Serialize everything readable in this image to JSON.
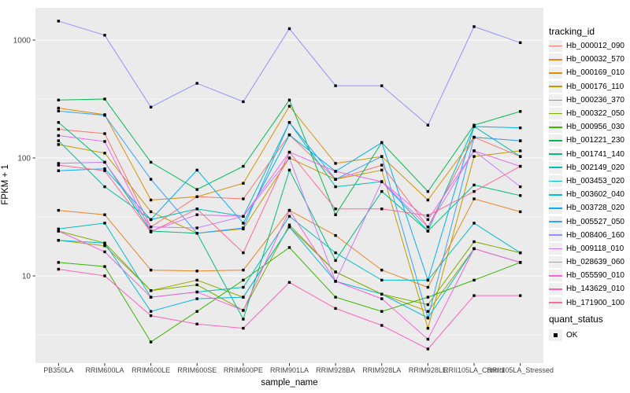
{
  "chart_data": {
    "type": "line",
    "title": "",
    "xlabel": "sample_name",
    "ylabel": "FPKM + 1",
    "y_scale": "log10",
    "ylim": [
      1.8,
      1875
    ],
    "grid": "white-on-gray",
    "panel_bg": "#EBEBEB",
    "gridline_color": "#FFFFFF",
    "tick_label_color": "#444444",
    "point_shape": "filled-square",
    "point_color": "#000000",
    "legend_position": "right",
    "y_ticks": [
      {
        "value": 10,
        "label": "10"
      },
      {
        "value": 100,
        "label": "100"
      },
      {
        "value": 1000,
        "label": "1000"
      }
    ],
    "y_minor_ticks": [
      3.162,
      31.62,
      316.2
    ],
    "categories": [
      "PB350LA",
      "RRIM600LA",
      "RRIM600LE",
      "RRIM600SE",
      "RRIM600PE",
      "RRIM901LA",
      "RRIM928BA",
      "RRIM928LA",
      "RRIM928LE",
      "RRII105LA_Control",
      "RRII105LA_Stressed"
    ],
    "series": [
      {
        "name": "Hb_000012_090",
        "color": "#F8766D",
        "values": [
          175,
          161,
          26,
          47,
          45,
          157,
          66,
          87,
          26,
          150,
          103
        ]
      },
      {
        "name": "Hb_000032_570",
        "color": "#E88526",
        "values": [
          36,
          33,
          11.2,
          11,
          11.2,
          36,
          22,
          11.2,
          8,
          45,
          35
        ]
      },
      {
        "name": "Hb_000169_010",
        "color": "#D89000",
        "values": [
          265,
          233,
          44,
          47,
          61,
          275,
          90,
          103,
          44,
          150,
          140
        ]
      },
      {
        "name": "Hb_000176_110",
        "color": "#C09B00",
        "values": [
          130,
          110,
          35,
          23,
          25,
          100,
          66,
          79,
          3.6,
          103,
          115
        ]
      },
      {
        "name": "Hb_000236_370",
        "color": "#A3A500",
        "values": [
          20,
          18,
          7.5,
          9.2,
          6.6,
          26,
          10.8,
          7,
          5,
          17,
          13
        ]
      },
      {
        "name": "Hb_000322_050",
        "color": "#7CAE00",
        "values": [
          24,
          19,
          7.5,
          8.4,
          5.1,
          27,
          10.8,
          7,
          5.7,
          19.5,
          15.7
        ]
      },
      {
        "name": "Hb_000956_030",
        "color": "#39B600",
        "values": [
          13,
          12,
          2.75,
          5,
          9.2,
          17.4,
          6.6,
          5,
          6.6,
          9.2,
          13
        ]
      },
      {
        "name": "Hb_001221_230",
        "color": "#00BB4E",
        "values": [
          310,
          316,
          92,
          54,
          85,
          310,
          33,
          135,
          52,
          190,
          248
        ]
      },
      {
        "name": "Hb_001741_140",
        "color": "#00BF7D",
        "values": [
          200,
          92,
          24,
          23,
          4.3,
          79,
          13.5,
          52,
          24,
          59,
          48
        ]
      },
      {
        "name": "Hb_002149_020",
        "color": "#00C0AF",
        "values": [
          140,
          57,
          30,
          37,
          32,
          200,
          57,
          63,
          24,
          185,
          103
        ]
      },
      {
        "name": "Hb_003453_020",
        "color": "#00BFC4",
        "values": [
          25,
          28,
          6.6,
          7.3,
          8,
          32,
          15.7,
          9.2,
          9.2,
          28,
          15.7
        ]
      },
      {
        "name": "Hb_003602_040",
        "color": "#00BAE0",
        "values": [
          20,
          19,
          5,
          6.4,
          6.6,
          26,
          9,
          7,
          4.4,
          17,
          13
        ]
      },
      {
        "name": "Hb_003728_020",
        "color": "#00B0F6",
        "values": [
          78,
          81,
          30,
          79,
          28,
          157,
          77,
          135,
          9.2,
          185,
          180
        ]
      },
      {
        "name": "Hb_005527_050",
        "color": "#35A2FF",
        "values": [
          250,
          230,
          66,
          23,
          25.5,
          200,
          66,
          103,
          4.4,
          150,
          140
        ]
      },
      {
        "name": "Hb_008406_160",
        "color": "#9590FF",
        "values": [
          1450,
          1100,
          270,
          430,
          300,
          1250,
          410,
          410,
          190,
          1300,
          950
        ]
      },
      {
        "name": "Hb_009118_010",
        "color": "#C77CFF",
        "values": [
          90,
          92,
          26,
          25.5,
          32,
          100,
          9,
          63,
          26,
          115,
          57
        ]
      },
      {
        "name": "Hb_028639_060",
        "color": "#E76BF3",
        "values": [
          155,
          138,
          24,
          33,
          32,
          112,
          77,
          63,
          30,
          115,
          85
        ]
      },
      {
        "name": "Hb_055590_010",
        "color": "#FA62DB",
        "values": [
          24,
          16,
          6.6,
          7.3,
          5.1,
          36,
          9,
          6.4,
          2.9,
          17,
          13
        ]
      },
      {
        "name": "Hb_143629_010",
        "color": "#FF62BC",
        "values": [
          11.4,
          10,
          4.6,
          3.9,
          3.6,
          8.8,
          5.3,
          3.8,
          2.4,
          6.8,
          6.8
        ]
      },
      {
        "name": "Hb_171900_100",
        "color": "#FF6A98",
        "values": [
          87,
          78,
          23.6,
          37,
          15.7,
          112,
          37,
          37,
          32.5,
          52,
          85
        ]
      }
    ]
  },
  "legend": {
    "title": "tracking_id"
  },
  "legend2": {
    "title": "quant_status",
    "items": [
      {
        "label": "OK",
        "key": "black-square"
      }
    ]
  }
}
